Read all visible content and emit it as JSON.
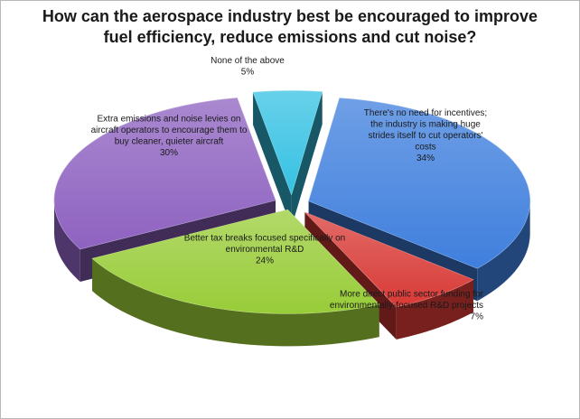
{
  "chart_data": {
    "type": "pie",
    "title": "How can the aerospace industry best be encouraged to improve\nfuel efficiency, reduce emissions and cut noise?",
    "slices": [
      {
        "label": "There's no need for incentives; the industry is making huge strides itself to cut operators' costs",
        "value": 34,
        "value_label": "34%",
        "color": "#3f7fdd"
      },
      {
        "label": "More direct public sector funding for environmentally-focused R&D projects",
        "value": 7,
        "value_label": "7%",
        "color": "#d83a36"
      },
      {
        "label": "Better tax breaks focused specifically on environmental R&D",
        "value": 24,
        "value_label": "24%",
        "color": "#98cc38"
      },
      {
        "label": "Extra emissions and noise levies on aircraft operators to encourage them to buy cleaner, quieter aircraft",
        "value": 30,
        "value_label": "30%",
        "color": "#8e62c0"
      },
      {
        "label": "None of the above",
        "value": 5,
        "value_label": "5%",
        "color": "#36c1e3"
      }
    ],
    "legend": "none",
    "exploded": true,
    "style": "3d"
  }
}
